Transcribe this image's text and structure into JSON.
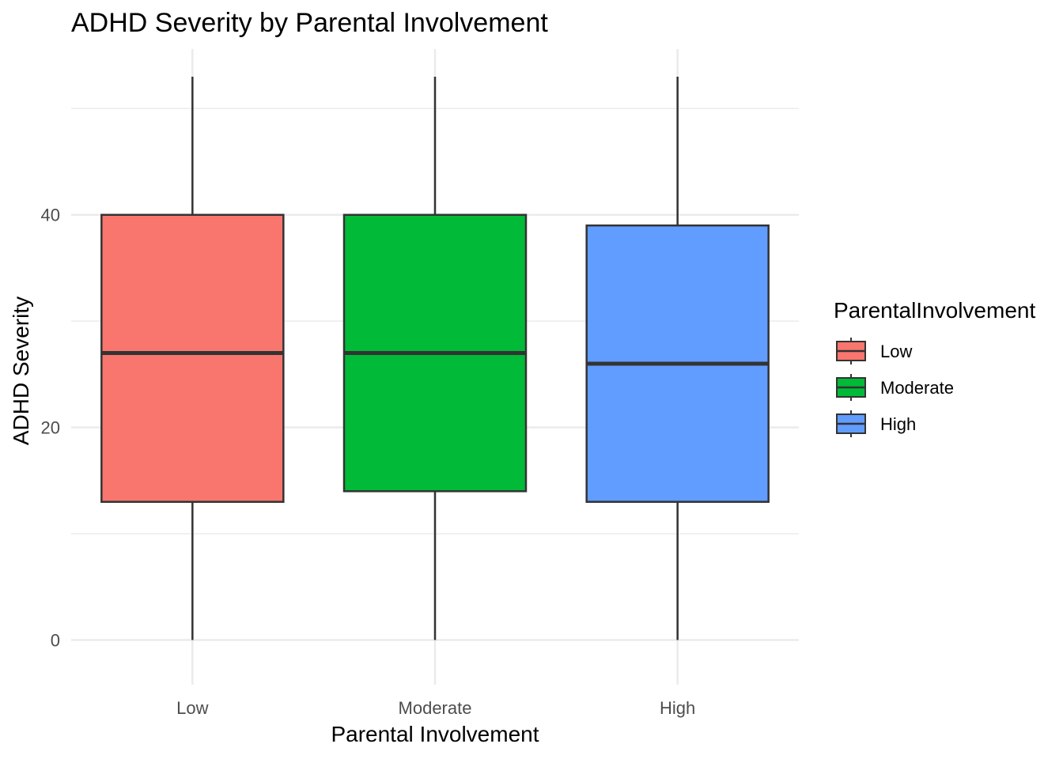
{
  "chart_data": {
    "type": "box",
    "title": "ADHD Severity by Parental Involvement",
    "xlabel": "Parental Involvement",
    "ylabel": "ADHD Severity",
    "categories": [
      "Low",
      "Moderate",
      "High"
    ],
    "yticks": [
      0,
      20,
      40
    ],
    "ylim": [
      -4.2,
      55.6
    ],
    "grid": true,
    "legend": {
      "title": "ParentalInvolvement",
      "position": "right",
      "entries": [
        "Low",
        "Moderate",
        "High"
      ]
    },
    "boxes": [
      {
        "category": "Low",
        "min": 0,
        "q1": 13,
        "median": 27,
        "q3": 40,
        "max": 53,
        "color": "#f8766d"
      },
      {
        "category": "Moderate",
        "min": 0,
        "q1": 14,
        "median": 27,
        "q3": 40,
        "max": 53,
        "color": "#00ba38"
      },
      {
        "category": "High",
        "min": 0,
        "q1": 13,
        "median": 26,
        "q3": 39,
        "max": 53,
        "color": "#619cff"
      }
    ]
  }
}
